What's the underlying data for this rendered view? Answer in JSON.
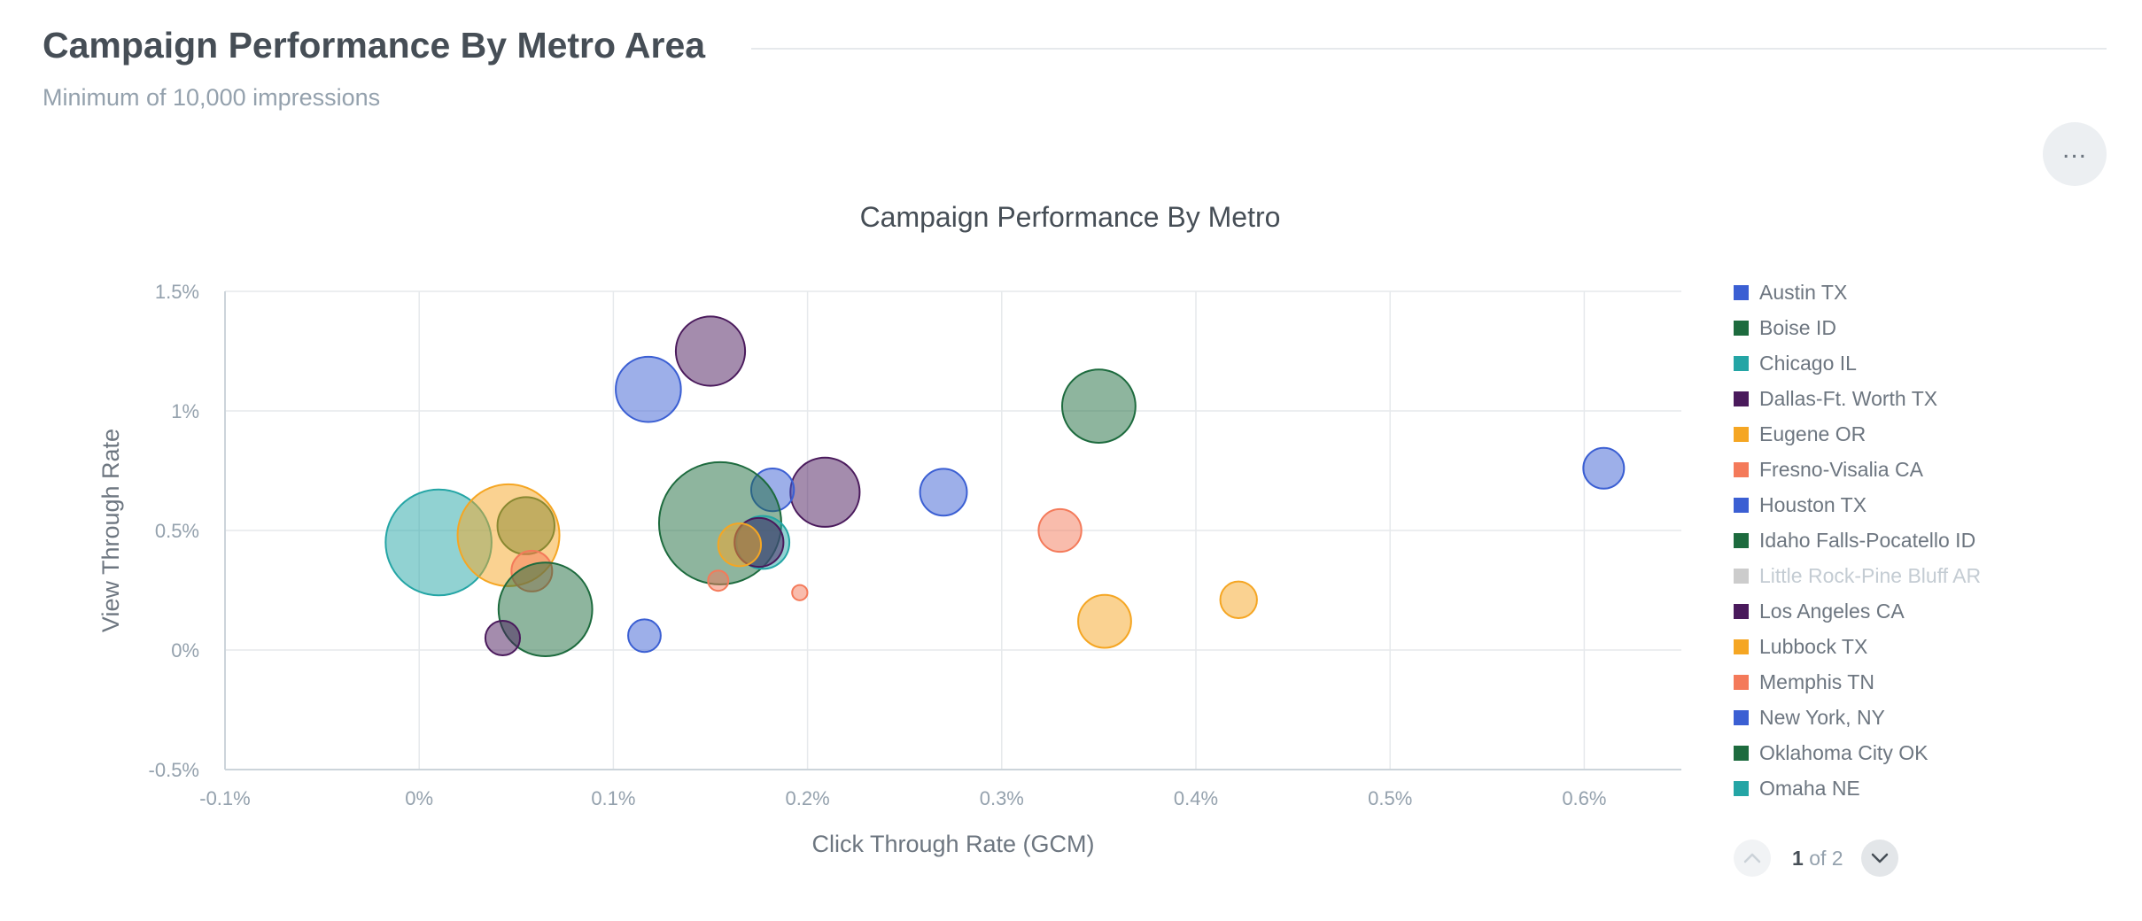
{
  "page": {
    "title": "Campaign Performance By Metro Area",
    "subtitle": "Minimum of 10,000 impressions",
    "menu_label": "..."
  },
  "pager": {
    "current": "1",
    "of_text": "of 2"
  },
  "colors": {
    "Austin TX": "#3b5fd3",
    "Boise ID": "#1d6b3e",
    "Chicago IL": "#24a5a5",
    "Dallas-Ft. Worth TX": "#4a1a5c",
    "Eugene OR": "#f5a623",
    "Fresno-Visalia CA": "#f47a5a",
    "Houston TX": "#3b5fd3",
    "Idaho Falls-Pocatello ID": "#1d6b3e",
    "Little Rock-Pine Bluff AR": "#cccccc",
    "Los Angeles CA": "#4a1a5c",
    "Lubbock TX": "#f5a623",
    "Memphis TN": "#f47a5a",
    "New York, NY": "#3b5fd3",
    "Oklahoma City OK": "#1d6b3e",
    "Omaha NE": "#24a5a5"
  },
  "chart_data": {
    "type": "scatter",
    "title": "Campaign Performance By Metro",
    "xlabel": "Click Through Rate (GCM)",
    "ylabel": "View Through Rate",
    "xlim": [
      -0.1,
      0.65
    ],
    "ylim": [
      -0.5,
      1.5
    ],
    "x_ticks": [
      -0.1,
      0,
      0.1,
      0.2,
      0.3,
      0.4,
      0.5,
      0.6
    ],
    "x_tick_labels": [
      "-0.1%",
      "0%",
      "0.1%",
      "0.2%",
      "0.3%",
      "0.4%",
      "0.5%",
      "0.6%"
    ],
    "y_ticks": [
      1.5,
      1,
      0.5,
      0,
      -0.5
    ],
    "y_tick_labels": [
      "1.5%",
      "1%",
      "0.5%",
      "0%",
      "-0.5%"
    ],
    "grid": true,
    "legend_position": "right",
    "legend": [
      {
        "name": "Austin TX",
        "color": "#3b5fd3",
        "enabled": true
      },
      {
        "name": "Boise ID",
        "color": "#1d6b3e",
        "enabled": true
      },
      {
        "name": "Chicago IL",
        "color": "#24a5a5",
        "enabled": true
      },
      {
        "name": "Dallas-Ft. Worth TX",
        "color": "#4a1a5c",
        "enabled": true
      },
      {
        "name": "Eugene OR",
        "color": "#f5a623",
        "enabled": true
      },
      {
        "name": "Fresno-Visalia CA",
        "color": "#f47a5a",
        "enabled": true
      },
      {
        "name": "Houston TX",
        "color": "#3b5fd3",
        "enabled": true
      },
      {
        "name": "Idaho Falls-Pocatello ID",
        "color": "#1d6b3e",
        "enabled": true
      },
      {
        "name": "Little Rock-Pine Bluff AR",
        "color": "#cccccc",
        "enabled": false
      },
      {
        "name": "Los Angeles CA",
        "color": "#4a1a5c",
        "enabled": true
      },
      {
        "name": "Lubbock TX",
        "color": "#f5a623",
        "enabled": true
      },
      {
        "name": "Memphis TN",
        "color": "#f47a5a",
        "enabled": true
      },
      {
        "name": "New York, NY",
        "color": "#3b5fd3",
        "enabled": true
      },
      {
        "name": "Oklahoma City OK",
        "color": "#1d6b3e",
        "enabled": true
      },
      {
        "name": "Omaha NE",
        "color": "#24a5a5",
        "enabled": true
      }
    ],
    "bubble_size_unit": "relative",
    "points": [
      {
        "x": 0.61,
        "y": 0.76,
        "size": 2.0,
        "color": "#3b5fd3"
      },
      {
        "x": 0.35,
        "y": 1.02,
        "size": 3.6,
        "color": "#1d6b3e"
      },
      {
        "x": 0.15,
        "y": 1.25,
        "size": 3.4,
        "color": "#4a1a5c"
      },
      {
        "x": 0.118,
        "y": 1.09,
        "size": 3.2,
        "color": "#3b5fd3"
      },
      {
        "x": 0.209,
        "y": 0.66,
        "size": 3.4,
        "color": "#4a1a5c"
      },
      {
        "x": 0.27,
        "y": 0.66,
        "size": 2.3,
        "color": "#3b5fd3"
      },
      {
        "x": 0.182,
        "y": 0.67,
        "size": 2.1,
        "color": "#3b5fd3"
      },
      {
        "x": 0.33,
        "y": 0.5,
        "size": 2.1,
        "color": "#f47a5a"
      },
      {
        "x": 0.01,
        "y": 0.45,
        "size": 5.2,
        "color": "#24a5a5"
      },
      {
        "x": 0.155,
        "y": 0.53,
        "size": 6.0,
        "color": "#1d6b3e"
      },
      {
        "x": 0.055,
        "y": 0.52,
        "size": 2.8,
        "color": "#1d6b3e"
      },
      {
        "x": 0.046,
        "y": 0.48,
        "size": 5.0,
        "color": "#f5a623"
      },
      {
        "x": 0.177,
        "y": 0.45,
        "size": 2.6,
        "color": "#24a5a5"
      },
      {
        "x": 0.175,
        "y": 0.45,
        "size": 2.4,
        "color": "#4a1a5c"
      },
      {
        "x": 0.165,
        "y": 0.44,
        "size": 2.1,
        "color": "#f5a623"
      },
      {
        "x": 0.058,
        "y": 0.33,
        "size": 2.0,
        "color": "#f47a5a"
      },
      {
        "x": 0.065,
        "y": 0.17,
        "size": 4.6,
        "color": "#1d6b3e"
      },
      {
        "x": 0.154,
        "y": 0.29,
        "size": 1.0,
        "color": "#f47a5a"
      },
      {
        "x": 0.196,
        "y": 0.24,
        "size": 0.75,
        "color": "#f47a5a"
      },
      {
        "x": 0.422,
        "y": 0.21,
        "size": 1.8,
        "color": "#f5a623"
      },
      {
        "x": 0.353,
        "y": 0.12,
        "size": 2.6,
        "color": "#f5a623"
      },
      {
        "x": 0.116,
        "y": 0.06,
        "size": 1.6,
        "color": "#3b5fd3"
      },
      {
        "x": 0.043,
        "y": 0.05,
        "size": 1.7,
        "color": "#4a1a5c"
      }
    ]
  }
}
